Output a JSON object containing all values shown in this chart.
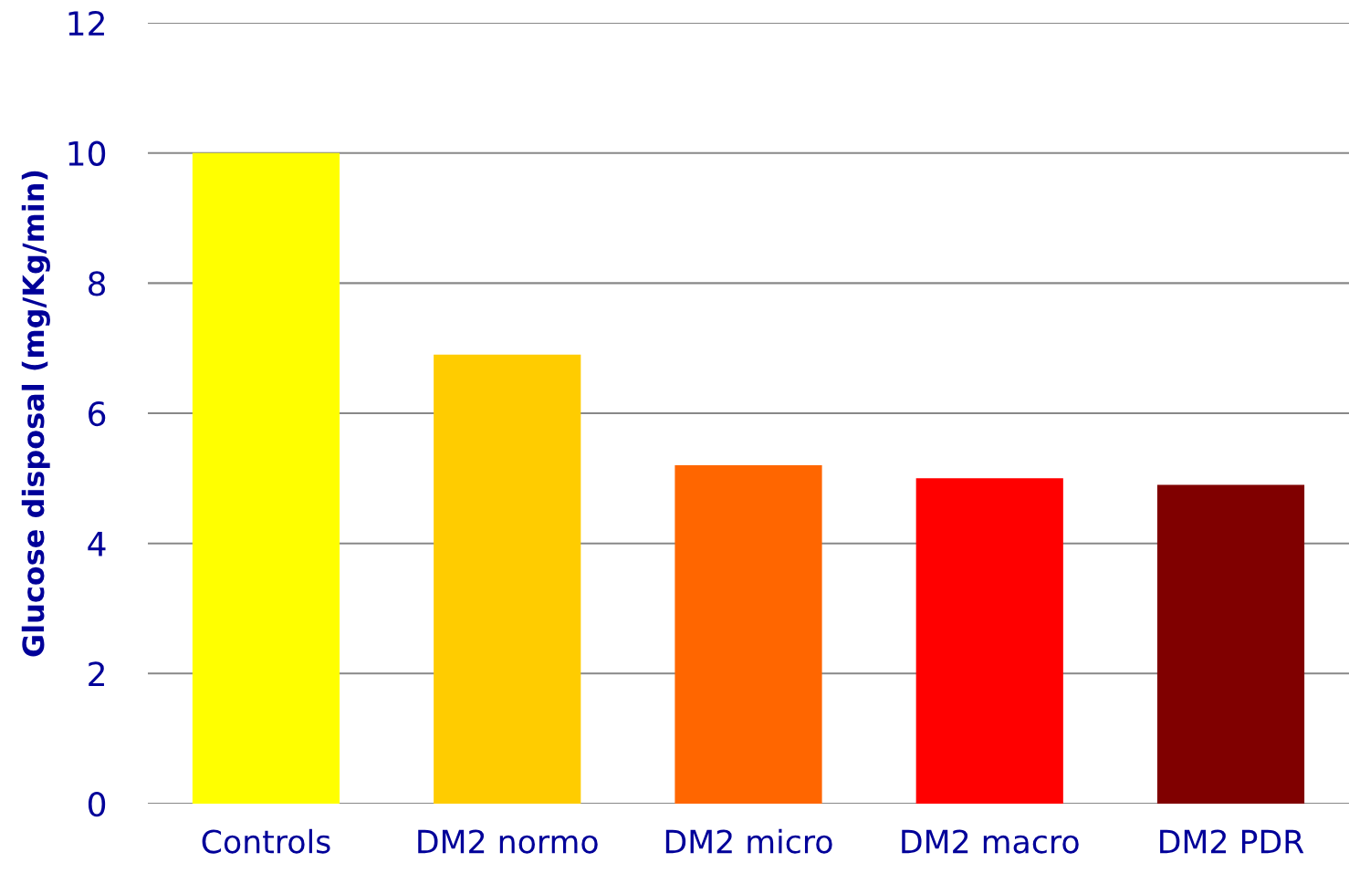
{
  "chart_data": {
    "type": "bar",
    "ylabel": "Glucose disposal (mg/Kg/min)",
    "categories": [
      "Controls",
      "DM2 normo",
      "DM2 micro",
      "DM2 macro",
      "DM2 PDR"
    ],
    "values": [
      10,
      6.9,
      5.2,
      5.0,
      4.9
    ],
    "colors": [
      "#ffff00",
      "#ffcc00",
      "#ff6600",
      "#ff0000",
      "#800000"
    ],
    "ylim": [
      0,
      12
    ],
    "yticks": [
      0,
      2,
      4,
      6,
      8,
      10,
      12
    ],
    "grid": "y"
  }
}
